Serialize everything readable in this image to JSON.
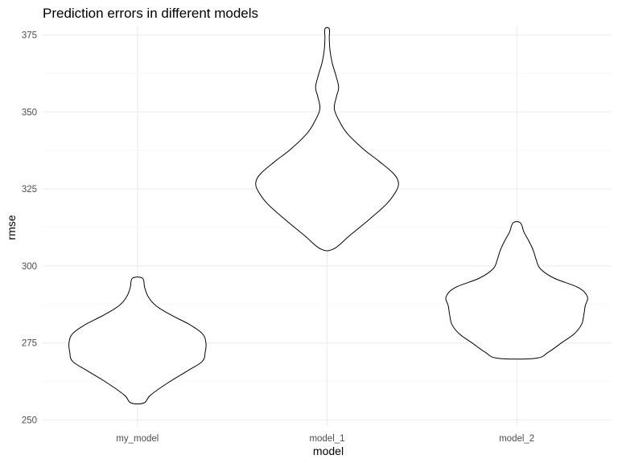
{
  "chart_data": {
    "type": "violin",
    "title": "Prediction errors in different models",
    "xlabel": "model",
    "ylabel": "rmse",
    "categories": [
      "my_model",
      "model_1",
      "model_2"
    ],
    "ylim": [
      248,
      378
    ],
    "yticks": [
      250,
      275,
      300,
      325,
      350,
      375
    ],
    "grid": true,
    "legend": "none",
    "series": [
      {
        "category": "my_model",
        "profile": [
          [
            255.5,
            0.09
          ],
          [
            258,
            0.18
          ],
          [
            262,
            0.42
          ],
          [
            266,
            0.7
          ],
          [
            269,
            0.9
          ],
          [
            272,
            0.94
          ],
          [
            275,
            0.95
          ],
          [
            278,
            0.9
          ],
          [
            281,
            0.72
          ],
          [
            284,
            0.47
          ],
          [
            287,
            0.26
          ],
          [
            290,
            0.15
          ],
          [
            293,
            0.1
          ],
          [
            296,
            0.07
          ]
        ]
      },
      {
        "category": "model_1",
        "profile": [
          [
            305.5,
            0.09
          ],
          [
            310,
            0.32
          ],
          [
            315,
            0.58
          ],
          [
            320,
            0.82
          ],
          [
            324,
            0.95
          ],
          [
            327,
            0.99
          ],
          [
            330,
            0.92
          ],
          [
            334,
            0.72
          ],
          [
            338,
            0.5
          ],
          [
            343,
            0.28
          ],
          [
            347,
            0.17
          ],
          [
            351,
            0.1
          ],
          [
            355,
            0.13
          ],
          [
            358,
            0.16
          ],
          [
            362,
            0.12
          ],
          [
            366,
            0.07
          ],
          [
            370,
            0.04
          ],
          [
            374,
            0.03
          ],
          [
            377,
            0.03
          ]
        ]
      },
      {
        "category": "model_2",
        "profile": [
          [
            270,
            0.26
          ],
          [
            272,
            0.44
          ],
          [
            275,
            0.62
          ],
          [
            278,
            0.8
          ],
          [
            281,
            0.9
          ],
          [
            284,
            0.93
          ],
          [
            287,
            0.95
          ],
          [
            290,
            0.98
          ],
          [
            293,
            0.85
          ],
          [
            296,
            0.52
          ],
          [
            299,
            0.33
          ],
          [
            302,
            0.27
          ],
          [
            305,
            0.23
          ],
          [
            308,
            0.17
          ],
          [
            311,
            0.1
          ],
          [
            314,
            0.05
          ]
        ]
      }
    ]
  }
}
